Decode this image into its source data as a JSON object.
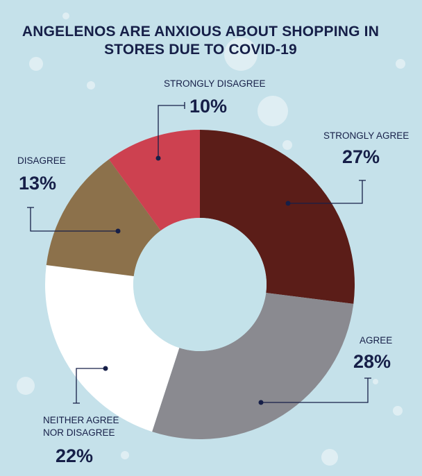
{
  "chart_data": {
    "type": "pie",
    "donut": true,
    "title_lines": [
      "ANGELENOS ARE ANXIOUS ABOUT SHOPPING IN",
      "STORES DUE TO COVID-19"
    ],
    "slices": [
      {
        "label": "STRONGLY AGREE",
        "value": 27,
        "value_label": "27%",
        "color": "#5b1d18"
      },
      {
        "label": "AGREE",
        "value": 28,
        "value_label": "28%",
        "color": "#8a8a90"
      },
      {
        "label_lines": [
          "NEITHER AGREE",
          "NOR DISAGREE"
        ],
        "value": 22,
        "value_label": "22%",
        "color": "#ffffff"
      },
      {
        "label": "DISAGREE",
        "value": 13,
        "value_label": "13%",
        "color": "#8c714b"
      },
      {
        "label": "STRONGLY DISAGREE",
        "value": 10,
        "value_label": "10%",
        "color": "#cd4150"
      }
    ],
    "start_angle": "12 o'clock",
    "direction": "clockwise",
    "legend": "none",
    "background_color": "#c5e1ea",
    "hole_color": "#c4e2ea",
    "text_color": "#161f48"
  }
}
